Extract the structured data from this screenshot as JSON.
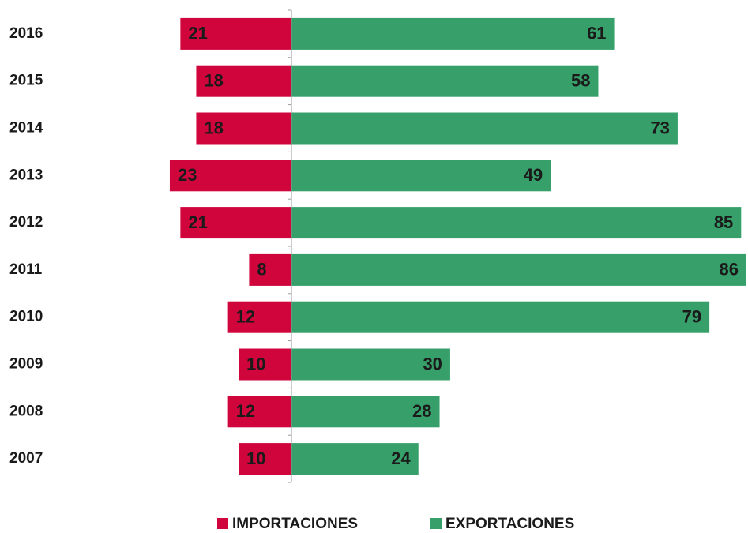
{
  "chart_data": {
    "type": "bar",
    "categories": [
      "2016",
      "2015",
      "2014",
      "2013",
      "2012",
      "2011",
      "2010",
      "2009",
      "2008",
      "2007"
    ],
    "series": [
      {
        "name": "IMPORTACIONES",
        "color": "#d0053c",
        "values": [
          21,
          18,
          18,
          23,
          21,
          8,
          12,
          10,
          12,
          10
        ]
      },
      {
        "name": "EXPORTACIONES",
        "color": "#37a06a",
        "values": [
          61,
          58,
          73,
          49,
          85,
          86,
          79,
          30,
          28,
          24
        ]
      }
    ],
    "legend": "bottom"
  }
}
